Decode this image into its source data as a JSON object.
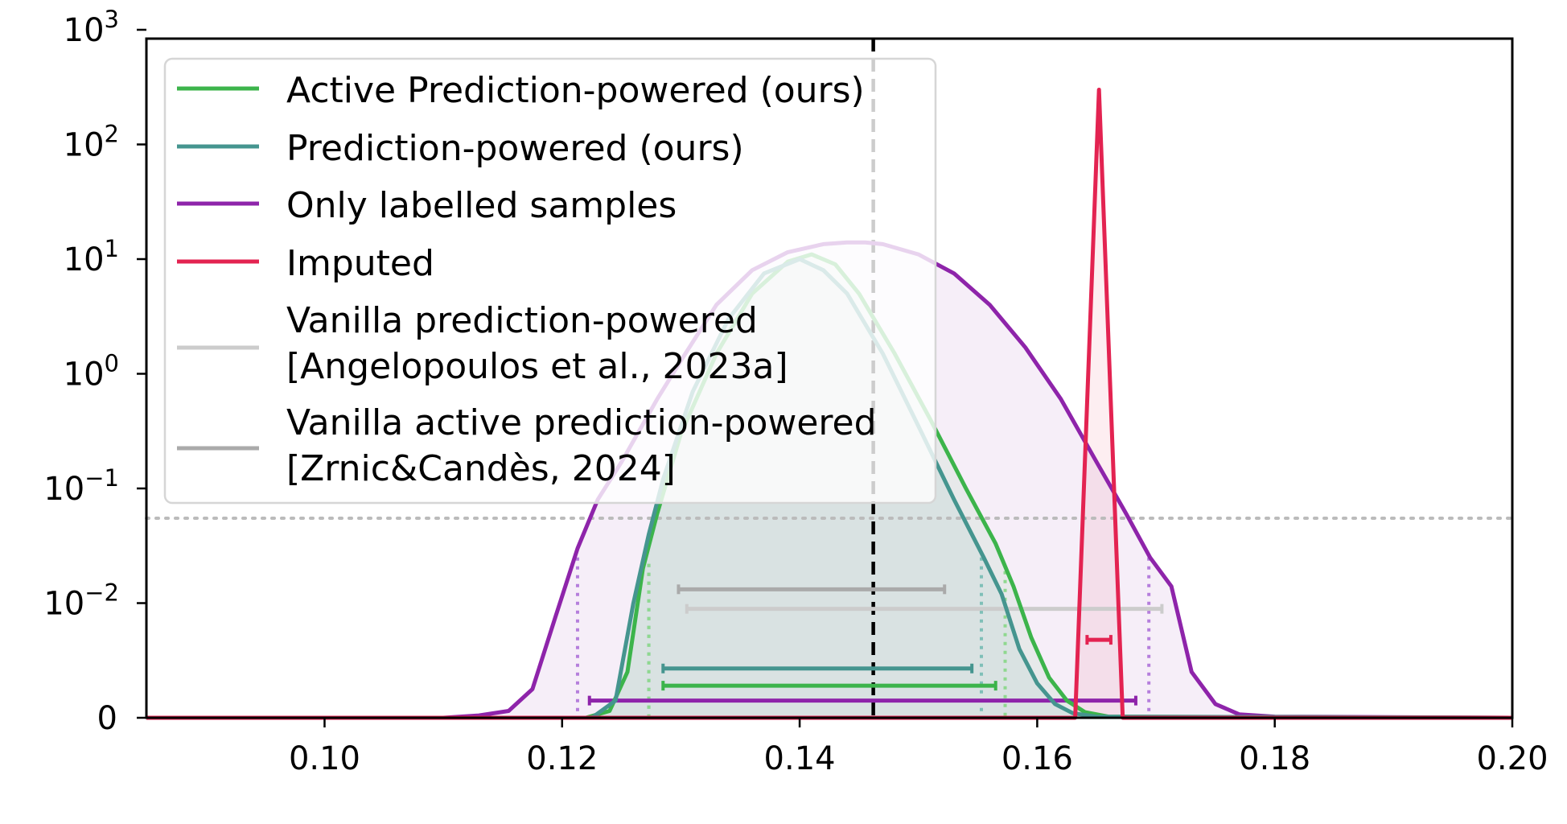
{
  "chart_data": {
    "type": "line",
    "title": "",
    "xlabel": "",
    "ylabel": "",
    "xlim": [
      0.085,
      0.2
    ],
    "x_ticks": [
      "0.10",
      "0.12",
      "0.14",
      "0.16",
      "0.18",
      "0.20"
    ],
    "y_scale": "symlog",
    "y_tick_labels": [
      {
        "value": 0,
        "base": "0",
        "exp": ""
      },
      {
        "value": 0.01,
        "base": "10",
        "exp": "−2"
      },
      {
        "value": 0.1,
        "base": "10",
        "exp": "−1"
      },
      {
        "value": 1,
        "base": "10",
        "exp": "0"
      },
      {
        "value": 10,
        "base": "10",
        "exp": "1"
      },
      {
        "value": 100,
        "base": "10",
        "exp": "2"
      },
      {
        "value": 1000,
        "base": "10",
        "exp": "3"
      }
    ],
    "reference_lines": {
      "true_value_x": 0.1462,
      "dotted_y": 0.055
    },
    "series": [
      {
        "name": "Only labelled samples",
        "color": "#8e24aa",
        "fill": true,
        "x": [
          0.085,
          0.11,
          0.113,
          0.1155,
          0.1175,
          0.1195,
          0.1213,
          0.123,
          0.125,
          0.128,
          0.13,
          0.133,
          0.136,
          0.139,
          0.142,
          0.144,
          0.1455,
          0.147,
          0.15,
          0.153,
          0.156,
          0.159,
          0.162,
          0.165,
          0.1675,
          0.1695,
          0.1713,
          0.173,
          0.175,
          0.177,
          0.18,
          0.2
        ],
        "y": [
          0,
          0,
          0.0002,
          0.0006,
          0.0025,
          0.009,
          0.03,
          0.08,
          0.17,
          0.6,
          1.3,
          4,
          8,
          11.5,
          13.5,
          14,
          14,
          13.5,
          11,
          7.5,
          4,
          1.7,
          0.6,
          0.17,
          0.06,
          0.025,
          0.014,
          0.004,
          0.0012,
          0.0003,
          0.0001,
          0
        ]
      },
      {
        "name": "Active Prediction-powered (ours)",
        "color": "#3cb44b",
        "fill": true,
        "x": [
          0.085,
          0.122,
          0.124,
          0.1255,
          0.1268,
          0.128,
          0.13,
          0.133,
          0.136,
          0.139,
          0.141,
          0.143,
          0.145,
          0.148,
          0.151,
          0.154,
          0.1565,
          0.158,
          0.1595,
          0.161,
          0.1625,
          0.164,
          0.166,
          0.2
        ],
        "y": [
          0,
          0,
          0.0006,
          0.004,
          0.02,
          0.06,
          0.3,
          1.5,
          5,
          9.5,
          11,
          9,
          5,
          1.5,
          0.4,
          0.1,
          0.033,
          0.014,
          0.007,
          0.0035,
          0.0015,
          0.0005,
          0.0001,
          0
        ]
      },
      {
        "name": "Prediction-powered (ours)",
        "color": "#45958f",
        "fill": true,
        "x": [
          0.085,
          0.1225,
          0.1245,
          0.126,
          0.1273,
          0.1285,
          0.131,
          0.134,
          0.137,
          0.14,
          0.142,
          0.144,
          0.147,
          0.15,
          0.153,
          0.1555,
          0.157,
          0.1585,
          0.16,
          0.1615,
          0.163,
          0.165,
          0.2
        ],
        "y": [
          0,
          0,
          0.0015,
          0.01,
          0.04,
          0.12,
          0.7,
          3,
          7.5,
          10,
          8,
          5,
          1.5,
          0.35,
          0.08,
          0.025,
          0.012,
          0.006,
          0.003,
          0.0012,
          0.0004,
          0.0001,
          0
        ]
      },
      {
        "name": "Imputed",
        "color": "#e32351",
        "fill": true,
        "x": [
          0.085,
          0.1632,
          0.1652,
          0.1672,
          0.2
        ],
        "y": [
          0,
          0,
          300,
          0,
          0
        ]
      },
      {
        "name": "Vanilla prediction-powered [Angelopoulos et al., 2023a]",
        "color": "#cccccc",
        "fill": false,
        "x": [],
        "y": []
      },
      {
        "name": "Vanilla active prediction-powered [Zrnic&Candès, 2024]",
        "color": "#aaaaaa",
        "fill": false,
        "x": [],
        "y": []
      }
    ],
    "intervals": [
      {
        "series": "Vanilla active prediction-powered [Zrnic&Candès, 2024]",
        "color": "#aaaaaa",
        "lo": 0.1298,
        "hi": 0.1522,
        "y": 0.0132
      },
      {
        "series": "Vanilla prediction-powered [Angelopoulos et al., 2023a]",
        "color": "#cccccc",
        "lo": 0.1305,
        "hi": 0.1705,
        "y": 0.0095
      },
      {
        "series": "Imputed",
        "color": "#e32351",
        "lo": 0.1642,
        "hi": 0.1662,
        "y": 0.0068
      },
      {
        "series": "Prediction-powered (ours)",
        "color": "#45958f",
        "lo": 0.1285,
        "hi": 0.1545,
        "y": 0.0043
      },
      {
        "series": "Active Prediction-powered (ours)",
        "color": "#3cb44b",
        "lo": 0.1285,
        "hi": 0.1565,
        "y": 0.0028
      },
      {
        "series": "Only labelled samples",
        "color": "#8e24aa",
        "lo": 0.1223,
        "hi": 0.1683,
        "y": 0.0015
      }
    ],
    "dotted_verticals": [
      {
        "color": "#b57edc",
        "x": 0.1213,
        "y_top": 0.025
      },
      {
        "color": "#b57edc",
        "x": 0.1694,
        "y_top": 0.025
      },
      {
        "color": "#7fbfb8",
        "x": 0.1273,
        "y_top": 0.022
      },
      {
        "color": "#7fbfb8",
        "x": 0.1553,
        "y_top": 0.025
      },
      {
        "color": "#8fd88f",
        "x": 0.1273,
        "y_top": 0.022
      },
      {
        "color": "#8fd88f",
        "x": 0.1573,
        "y_top": 0.019
      }
    ],
    "legend": {
      "placement": "top-left",
      "entries": [
        {
          "lines": [
            "Active Prediction-powered (ours)"
          ],
          "color": "#3cb44b"
        },
        {
          "lines": [
            "Prediction-powered (ours)"
          ],
          "color": "#45958f"
        },
        {
          "lines": [
            "Only labelled samples"
          ],
          "color": "#8e24aa"
        },
        {
          "lines": [
            "Imputed"
          ],
          "color": "#e32351"
        },
        {
          "lines": [
            "Vanilla prediction-powered",
            "[Angelopoulos et al., 2023a]"
          ],
          "color": "#cccccc"
        },
        {
          "lines": [
            "Vanilla active prediction-powered",
            "[Zrnic&Candès, 2024]"
          ],
          "color": "#aaaaaa"
        }
      ]
    }
  }
}
